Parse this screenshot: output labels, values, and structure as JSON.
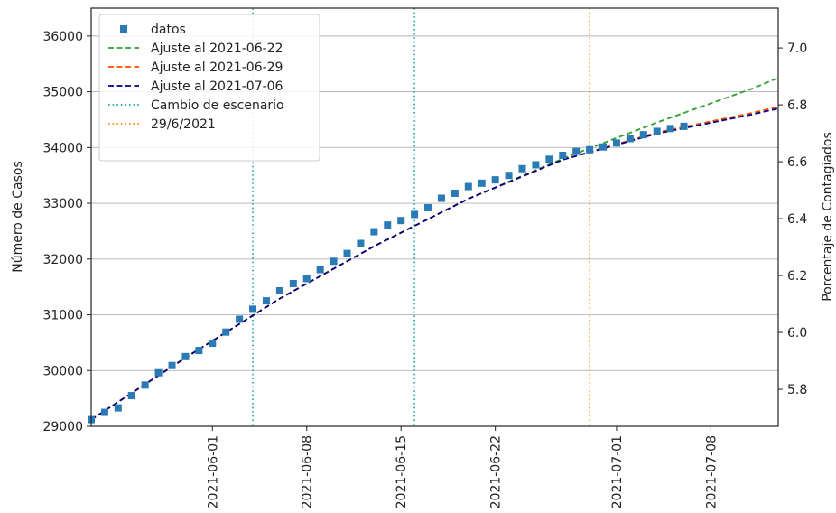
{
  "chart_data": {
    "type": "scatter",
    "ylabel_left": "Número de Casos",
    "ylabel_right": "Porcentaje de Contagiados",
    "xlim": [
      "2021-05-23",
      "2021-07-13"
    ],
    "ylim": [
      29000,
      36500
    ],
    "ylim_right": [
      5.67,
      7.14
    ],
    "x_ticks": [
      "2021-06-01",
      "2021-06-08",
      "2021-06-15",
      "2021-06-22",
      "2021-07-01",
      "2021-07-08"
    ],
    "y_ticks": [
      29000,
      30000,
      31000,
      32000,
      33000,
      34000,
      35000,
      36000
    ],
    "y_ticks_right": [
      5.8,
      6.0,
      6.2,
      6.4,
      6.6,
      6.8,
      7.0
    ],
    "grid": "horizontal",
    "legend_position": "top-left",
    "colors": {
      "datos": "#2a7ab5",
      "ajuste_0622": "#2ca02c",
      "ajuste_0629": "#ff4d00",
      "ajuste_0706": "#000080",
      "cambio": "#1ca5a5",
      "fecha": "#ff8c00"
    },
    "legend": [
      {
        "label": "datos",
        "style": "square",
        "color": "#2a7ab5"
      },
      {
        "label": "Ajuste al 2021-06-22",
        "style": "dashed",
        "color": "#2ca02c"
      },
      {
        "label": "Ajuste al 2021-06-29",
        "style": "dashed",
        "color": "#ff4d00"
      },
      {
        "label": "Ajuste al 2021-07-06",
        "style": "dashed",
        "color": "#000080"
      },
      {
        "label": "Cambio de escenario",
        "style": "dotted",
        "color": "#1ca5a5"
      },
      {
        "label": "29/6/2021",
        "style": "dotted",
        "color": "#ff8c00"
      }
    ],
    "vlines": [
      {
        "x": "2021-06-04",
        "color": "#1ca5a5"
      },
      {
        "x": "2021-06-16",
        "color": "#1ca5a5"
      },
      {
        "x": "2021-06-29",
        "color": "#ff8c00"
      }
    ],
    "datos": {
      "x": [
        "2021-05-23",
        "2021-05-24",
        "2021-05-25",
        "2021-05-26",
        "2021-05-27",
        "2021-05-28",
        "2021-05-29",
        "2021-05-30",
        "2021-05-31",
        "2021-06-01",
        "2021-06-02",
        "2021-06-03",
        "2021-06-04",
        "2021-06-05",
        "2021-06-06",
        "2021-06-07",
        "2021-06-08",
        "2021-06-09",
        "2021-06-10",
        "2021-06-11",
        "2021-06-12",
        "2021-06-13",
        "2021-06-14",
        "2021-06-15",
        "2021-06-16",
        "2021-06-17",
        "2021-06-18",
        "2021-06-19",
        "2021-06-20",
        "2021-06-21",
        "2021-06-22",
        "2021-06-23",
        "2021-06-24",
        "2021-06-25",
        "2021-06-26",
        "2021-06-27",
        "2021-06-28",
        "2021-06-29",
        "2021-06-30",
        "2021-07-01",
        "2021-07-02",
        "2021-07-03",
        "2021-07-04",
        "2021-07-05",
        "2021-07-06"
      ],
      "y": [
        29120,
        29250,
        29330,
        29550,
        29740,
        29960,
        30090,
        30250,
        30360,
        30490,
        30690,
        30920,
        31100,
        31250,
        31430,
        31560,
        31650,
        31810,
        31960,
        32100,
        32280,
        32490,
        32610,
        32690,
        32800,
        32920,
        33090,
        33180,
        33300,
        33360,
        33420,
        33500,
        33620,
        33690,
        33790,
        33860,
        33930,
        33960,
        34010,
        34080,
        34160,
        34230,
        34290,
        34340,
        34380
      ]
    },
    "fits": [
      {
        "name": "Ajuste al 2021-06-22",
        "color": "#2ca02c",
        "x": [
          "2021-05-23",
          "2021-05-30",
          "2021-06-06",
          "2021-06-13",
          "2021-06-20",
          "2021-06-27",
          "2021-07-04",
          "2021-07-11",
          "2021-07-13"
        ],
        "y": [
          29120,
          30230,
          31290,
          32230,
          33080,
          33800,
          34450,
          35050,
          35250
        ]
      },
      {
        "name": "Ajuste al 2021-06-29",
        "color": "#ff4d00",
        "x": [
          "2021-05-23",
          "2021-05-30",
          "2021-06-06",
          "2021-06-13",
          "2021-06-20",
          "2021-06-27",
          "2021-07-04",
          "2021-07-11",
          "2021-07-13"
        ],
        "y": [
          29120,
          30230,
          31290,
          32230,
          33080,
          33780,
          34270,
          34620,
          34730
        ]
      },
      {
        "name": "Ajuste al 2021-07-06",
        "color": "#000080",
        "x": [
          "2021-05-23",
          "2021-05-30",
          "2021-06-06",
          "2021-06-13",
          "2021-06-20",
          "2021-06-27",
          "2021-07-04",
          "2021-07-11",
          "2021-07-13"
        ],
        "y": [
          29120,
          30230,
          31290,
          32230,
          33080,
          33780,
          34250,
          34590,
          34700
        ]
      }
    ]
  }
}
